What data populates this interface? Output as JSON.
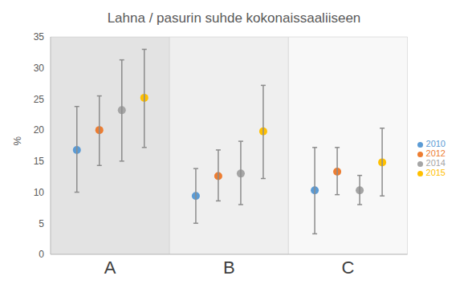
{
  "chart_data": {
    "type": "scatter",
    "title": "Lahna / pasurin suhde kokonaissaaliiseen",
    "y_label": "%",
    "categories": [
      "A",
      "B",
      "C"
    ],
    "series": [
      {
        "name": "2010",
        "color": "#5b9bd5",
        "marker": "circle",
        "values": [
          16.8,
          9.4,
          10.3
        ],
        "lower": [
          10.0,
          5.0,
          3.3
        ],
        "upper": [
          23.8,
          13.8,
          17.2
        ]
      },
      {
        "name": "2012",
        "color": "#ed7d31",
        "marker": "circle",
        "values": [
          20.0,
          12.6,
          13.3
        ],
        "lower": [
          14.3,
          8.6,
          9.6
        ],
        "upper": [
          25.5,
          16.8,
          17.2
        ]
      },
      {
        "name": "2014",
        "color": "#a5a5a5",
        "marker": "circle",
        "values": [
          23.2,
          13.0,
          10.3
        ],
        "lower": [
          15.0,
          8.0,
          8.0
        ],
        "upper": [
          31.3,
          18.2,
          12.7
        ]
      },
      {
        "name": "2015",
        "color": "#ffc000",
        "marker": "circle",
        "values": [
          25.2,
          19.8,
          14.8
        ],
        "lower": [
          17.2,
          12.2,
          9.4
        ],
        "upper": [
          33.0,
          27.2,
          20.3
        ]
      }
    ],
    "ylim": [
      0,
      35
    ],
    "yticks": [
      0,
      5,
      10,
      15,
      20,
      25,
      30,
      35
    ],
    "grid": false,
    "legend": "right"
  }
}
